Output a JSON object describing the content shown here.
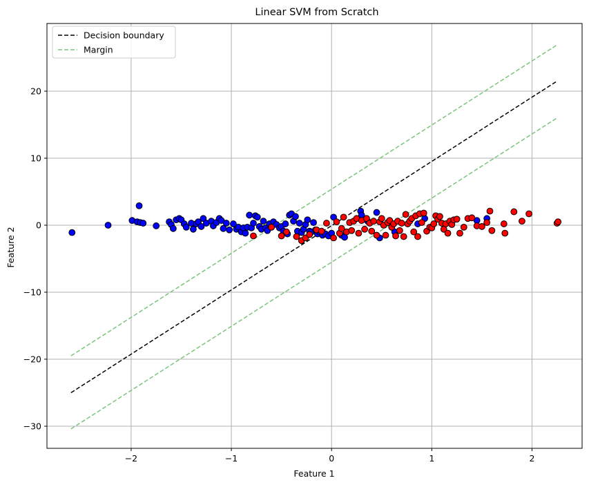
{
  "chart_data": {
    "type": "scatter",
    "title": "Linear SVM from Scratch",
    "xlabel": "Feature 1",
    "ylabel": "Feature 2",
    "xlim": [
      -2.84,
      2.5
    ],
    "ylim": [
      -33.3,
      30.1
    ],
    "x_ticks": [
      -2,
      -1,
      0,
      1,
      2
    ],
    "x_tick_labels": [
      "−2",
      "−1",
      "0",
      "1",
      "2"
    ],
    "y_ticks": [
      -30,
      -20,
      -10,
      0,
      10,
      20
    ],
    "y_tick_labels": [
      "−30",
      "−20",
      "−10",
      "0",
      "10",
      "20"
    ],
    "grid": true,
    "legend_position": "top-left",
    "colors": {
      "class_blue": "#0000ff",
      "class_red": "#ff0000",
      "boundary": "#000000",
      "margin": "#7bc47b",
      "grid": "#b0b0b0"
    },
    "lines": [
      {
        "name": "Decision boundary",
        "style": "dashed",
        "color": "#000000",
        "x": [
          -2.6,
          2.25
        ],
        "y": [
          -25.0,
          21.5
        ]
      },
      {
        "name": "Margin",
        "style": "dashed",
        "color": "#7bc47b",
        "x": [
          -2.6,
          2.25
        ],
        "y": [
          -19.5,
          26.9
        ]
      },
      {
        "style": "dashed",
        "color": "#7bc47b",
        "x": [
          -2.6,
          2.25
        ],
        "y": [
          -30.4,
          16.0
        ]
      }
    ],
    "legend": [
      "Decision boundary",
      "Margin"
    ],
    "series": [
      {
        "color": "#0000ff",
        "points": [
          [
            -2.59,
            -1.1
          ],
          [
            -2.23,
            0.0
          ],
          [
            -1.99,
            0.7
          ],
          [
            -1.94,
            0.5
          ],
          [
            -1.92,
            2.9
          ],
          [
            -1.91,
            0.4
          ],
          [
            -1.88,
            0.3
          ],
          [
            -1.75,
            -0.1
          ],
          [
            -1.62,
            0.5
          ],
          [
            -1.6,
            0.1
          ],
          [
            -1.58,
            -0.5
          ],
          [
            -1.55,
            0.8
          ],
          [
            -1.52,
            1.0
          ],
          [
            -1.5,
            0.8
          ],
          [
            -1.47,
            0.2
          ],
          [
            -1.45,
            -0.3
          ],
          [
            -1.4,
            0.3
          ],
          [
            -1.38,
            -0.6
          ],
          [
            -1.35,
            0.2
          ],
          [
            -1.33,
            0.5
          ],
          [
            -1.3,
            -0.2
          ],
          [
            -1.28,
            1.0
          ],
          [
            -1.25,
            0.3
          ],
          [
            -1.2,
            0.6
          ],
          [
            -1.18,
            -0.1
          ],
          [
            -1.15,
            0.4
          ],
          [
            -1.12,
            1.0
          ],
          [
            -1.1,
            0.7
          ],
          [
            -1.08,
            -0.5
          ],
          [
            -1.05,
            0.3
          ],
          [
            -1.02,
            -0.7
          ],
          [
            -0.98,
            0.2
          ],
          [
            -0.95,
            -0.6
          ],
          [
            -0.93,
            -0.3
          ],
          [
            -0.9,
            -1.0
          ],
          [
            -0.88,
            -0.4
          ],
          [
            -0.86,
            -1.2
          ],
          [
            -0.84,
            -0.3
          ],
          [
            -0.82,
            1.5
          ],
          [
            -0.8,
            -0.4
          ],
          [
            -0.78,
            0.3
          ],
          [
            -0.76,
            1.4
          ],
          [
            -0.74,
            1.2
          ],
          [
            -0.72,
            -0.2
          ],
          [
            -0.7,
            -0.6
          ],
          [
            -0.68,
            0.6
          ],
          [
            -0.66,
            -0.4
          ],
          [
            -0.64,
            -0.8
          ],
          [
            -0.62,
            0.2
          ],
          [
            -0.6,
            -0.3
          ],
          [
            -0.58,
            0.5
          ],
          [
            -0.55,
            0.1
          ],
          [
            -0.52,
            -0.4
          ],
          [
            -0.5,
            -0.2
          ],
          [
            -0.48,
            -0.9
          ],
          [
            -0.46,
            0.2
          ],
          [
            -0.44,
            -1.3
          ],
          [
            -0.42,
            1.5
          ],
          [
            -0.4,
            1.7
          ],
          [
            -0.38,
            0.6
          ],
          [
            -0.36,
            1.3
          ],
          [
            -0.34,
            -0.9
          ],
          [
            -0.32,
            0.3
          ],
          [
            -0.3,
            -1.1
          ],
          [
            -0.28,
            -0.6
          ],
          [
            -0.26,
            0.1
          ],
          [
            -0.24,
            0.8
          ],
          [
            -0.22,
            -0.9
          ],
          [
            -0.2,
            -1.0
          ],
          [
            -0.18,
            0.4
          ],
          [
            -0.16,
            -0.7
          ],
          [
            -0.14,
            -1.3
          ],
          [
            -0.12,
            -1.0
          ],
          [
            -0.09,
            -1.5
          ],
          [
            -0.06,
            -1.3
          ],
          [
            -0.03,
            -1.6
          ],
          [
            0.0,
            -1.2
          ],
          [
            0.02,
            1.2
          ],
          [
            0.1,
            -1.5
          ],
          [
            0.13,
            -1.8
          ],
          [
            0.29,
            2.1
          ],
          [
            0.3,
            1.5
          ],
          [
            0.36,
            0.6
          ],
          [
            0.45,
            1.9
          ],
          [
            0.48,
            -1.9
          ],
          [
            0.63,
            -1.0
          ],
          [
            0.86,
            0.2
          ],
          [
            0.93,
            1.0
          ],
          [
            1.45,
            0.7
          ],
          [
            1.55,
            1.0
          ]
        ]
      },
      {
        "color": "#ff0000",
        "points": [
          [
            -0.78,
            -1.6
          ],
          [
            -0.6,
            -0.3
          ],
          [
            -0.5,
            -1.6
          ],
          [
            -0.45,
            -1.0
          ],
          [
            -0.35,
            -1.7
          ],
          [
            -0.3,
            -2.3
          ],
          [
            -0.26,
            -1.9
          ],
          [
            -0.22,
            -1.4
          ],
          [
            -0.15,
            -0.7
          ],
          [
            -0.1,
            -0.9
          ],
          [
            -0.05,
            0.3
          ],
          [
            0.02,
            -1.9
          ],
          [
            0.05,
            0.5
          ],
          [
            0.08,
            -1.2
          ],
          [
            0.1,
            -0.5
          ],
          [
            0.12,
            1.2
          ],
          [
            0.15,
            -1.0
          ],
          [
            0.18,
            0.4
          ],
          [
            0.2,
            -0.8
          ],
          [
            0.22,
            0.6
          ],
          [
            0.25,
            1.0
          ],
          [
            0.27,
            -1.2
          ],
          [
            0.3,
            0.7
          ],
          [
            0.33,
            -0.6
          ],
          [
            0.35,
            1.0
          ],
          [
            0.38,
            0.3
          ],
          [
            0.4,
            -0.9
          ],
          [
            0.42,
            0.6
          ],
          [
            0.45,
            -1.5
          ],
          [
            0.48,
            0.5
          ],
          [
            0.5,
            1.0
          ],
          [
            0.52,
            0.0
          ],
          [
            0.54,
            -1.5
          ],
          [
            0.56,
            0.4
          ],
          [
            0.58,
            0.7
          ],
          [
            0.6,
            -0.3
          ],
          [
            0.62,
            0.2
          ],
          [
            0.64,
            -1.6
          ],
          [
            0.66,
            0.6
          ],
          [
            0.68,
            -0.8
          ],
          [
            0.7,
            0.3
          ],
          [
            0.72,
            -1.7
          ],
          [
            0.74,
            1.6
          ],
          [
            0.76,
            0.2
          ],
          [
            0.78,
            0.6
          ],
          [
            0.8,
            1.0
          ],
          [
            0.82,
            -1.0
          ],
          [
            0.84,
            1.4
          ],
          [
            0.86,
            -1.7
          ],
          [
            0.88,
            1.7
          ],
          [
            0.9,
            0.4
          ],
          [
            0.92,
            1.8
          ],
          [
            0.95,
            -0.9
          ],
          [
            0.98,
            -0.3
          ],
          [
            1.0,
            -0.4
          ],
          [
            1.02,
            0.2
          ],
          [
            1.04,
            1.4
          ],
          [
            1.06,
            0.9
          ],
          [
            1.08,
            1.3
          ],
          [
            1.1,
            0.3
          ],
          [
            1.12,
            -0.6
          ],
          [
            1.14,
            0.2
          ],
          [
            1.16,
            -1.2
          ],
          [
            1.18,
            0.6
          ],
          [
            1.2,
            0.1
          ],
          [
            1.22,
            0.8
          ],
          [
            1.25,
            0.9
          ],
          [
            1.28,
            -1.2
          ],
          [
            1.32,
            -0.3
          ],
          [
            1.36,
            1.0
          ],
          [
            1.4,
            1.1
          ],
          [
            1.45,
            -0.1
          ],
          [
            1.5,
            -0.2
          ],
          [
            1.55,
            0.4
          ],
          [
            1.58,
            2.1
          ],
          [
            1.6,
            -0.8
          ],
          [
            1.72,
            0.2
          ],
          [
            1.73,
            -1.2
          ],
          [
            1.82,
            2.0
          ],
          [
            1.9,
            0.6
          ],
          [
            1.97,
            1.7
          ],
          [
            2.25,
            0.3
          ],
          [
            2.26,
            0.5
          ]
        ]
      }
    ]
  }
}
